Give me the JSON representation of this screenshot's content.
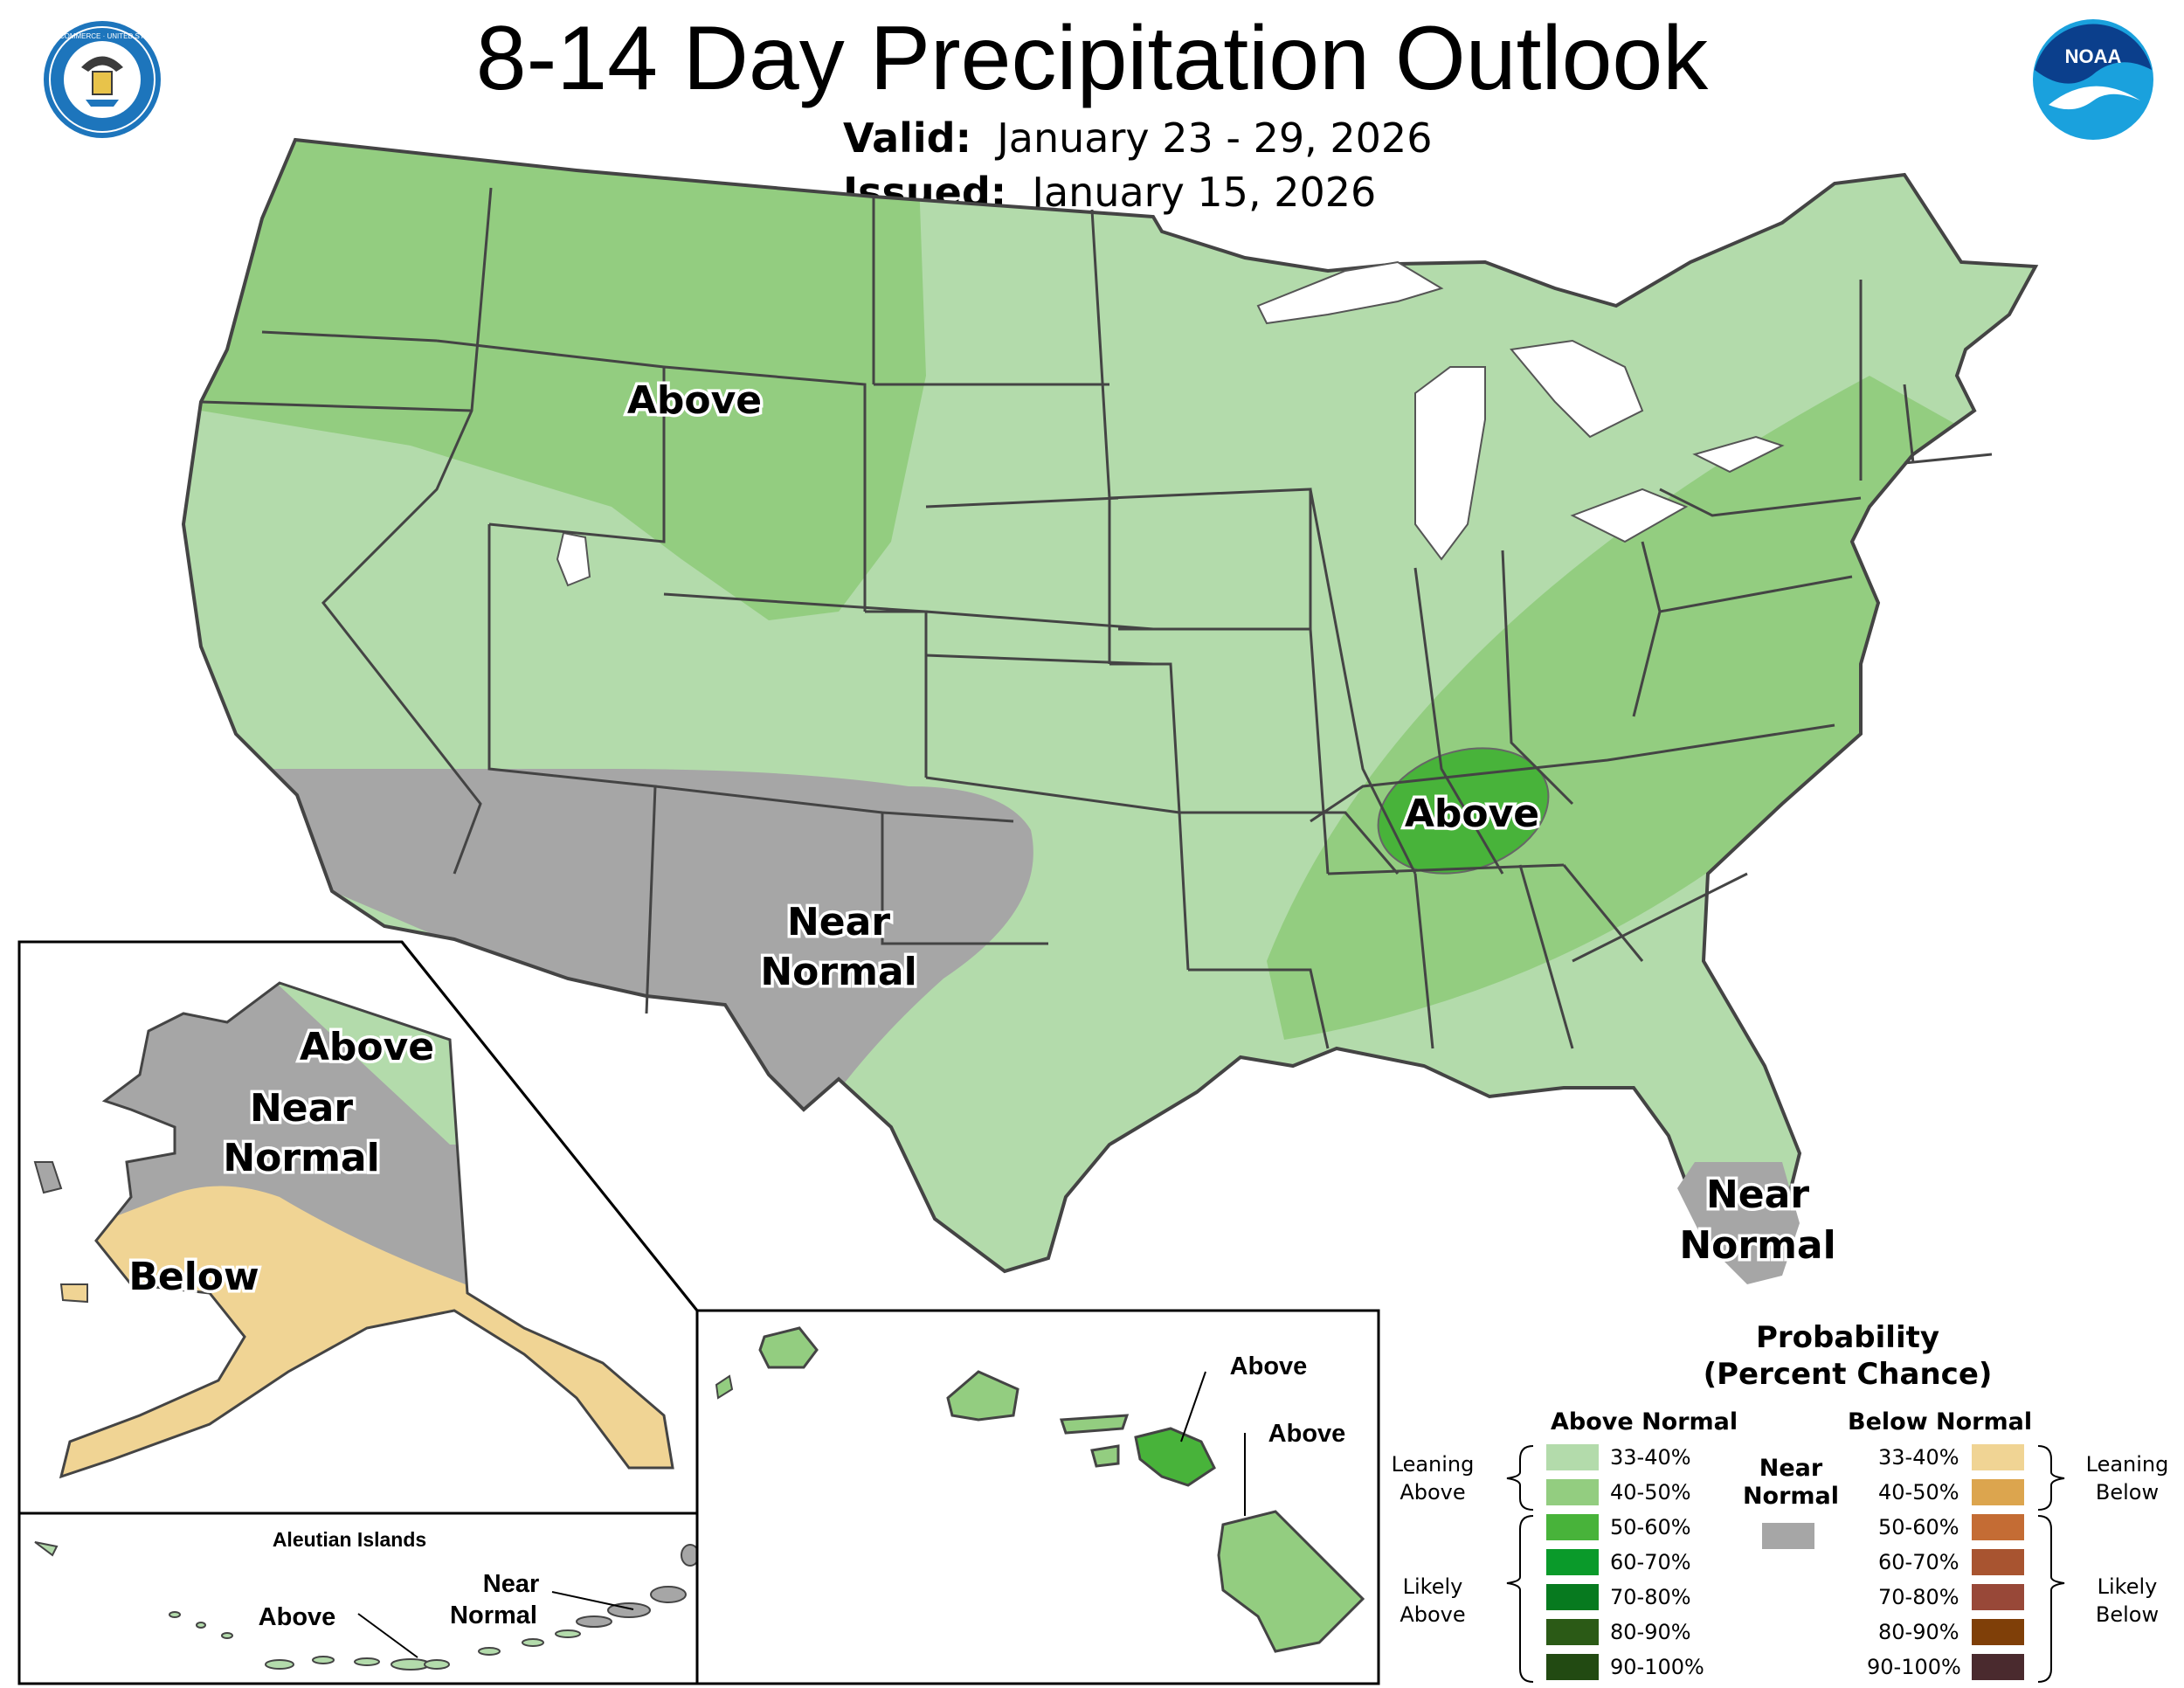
{
  "title": "8-14 Day Precipitation Outlook",
  "valid_label": "Valid:",
  "valid_value": "January 23 - 29, 2026",
  "issued_label": "Issued:",
  "issued_value": "January 15, 2026",
  "logos": {
    "left": "department-of-commerce-seal",
    "left_text": "DEPARTMENT OF COMMERCE · UNITED STATES OF AMERICA",
    "right": "noaa-logo",
    "right_text": "NOAA"
  },
  "map_labels": {
    "conus_above_northwest": "Above",
    "conus_above_tennessee": "Above",
    "conus_near_normal_sw_1": "Near",
    "conus_near_normal_sw_2": "Normal",
    "florida_near_1": "Near",
    "florida_near_2": "Normal",
    "alaska_above": "Above",
    "alaska_near_1": "Near",
    "alaska_near_2": "Normal",
    "alaska_below": "Below",
    "aleutian_title": "Aleutian Islands",
    "aleutian_above": "Above",
    "aleutian_near_1": "Near",
    "aleutian_near_2": "Normal",
    "hawaii_above_maui": "Above",
    "hawaii_above_big_island": "Above"
  },
  "colors": {
    "above_33_40": "#b3dbab",
    "above_40_50": "#93cd80",
    "above_50_60": "#48b33a",
    "above_60_70": "#0a9a2a",
    "above_70_80": "#077a1f",
    "above_80_90": "#2b5a16",
    "above_90_100": "#224a12",
    "near_normal": "#a6a6a6",
    "below_33_40": "#f0d494",
    "below_40_50": "#dca54e",
    "below_50_60": "#c46c34",
    "below_60_70": "#a85430",
    "below_70_80": "#984838",
    "below_80_90": "#7f3f08",
    "below_90_100": "#4a2a2e",
    "state_border": "#444444"
  },
  "legend": {
    "heading_1": "Probability",
    "heading_2": "(Percent Chance)",
    "above_title": "Above Normal",
    "below_title": "Below Normal",
    "near_1": "Near",
    "near_2": "Normal",
    "leaning_above_1": "Leaning",
    "leaning_above_2": "Above",
    "likely_above_1": "Likely",
    "likely_above_2": "Above",
    "leaning_below_1": "Leaning",
    "leaning_below_2": "Below",
    "likely_below_1": "Likely",
    "likely_below_2": "Below",
    "above_ranges": [
      "33-40%",
      "40-50%",
      "50-60%",
      "60-70%",
      "70-80%",
      "80-90%",
      "90-100%"
    ],
    "below_ranges": [
      "33-40%",
      "40-50%",
      "50-60%",
      "60-70%",
      "70-80%",
      "80-90%",
      "90-100%"
    ]
  }
}
